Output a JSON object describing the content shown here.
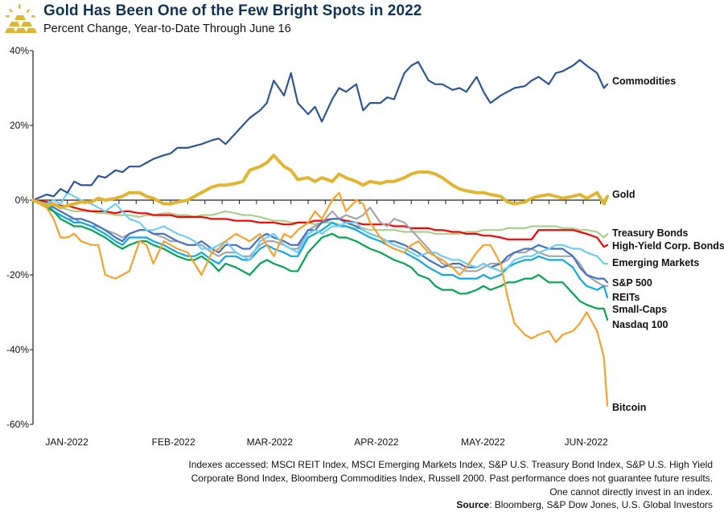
{
  "header": {
    "title": "Gold Has Been One of the Few Bright Spots in 2022",
    "subtitle": "Percent Change, Year-to-Date Through June 16",
    "logo_icon": "gold-bars-icon"
  },
  "footer": {
    "line1": "Indexes accessed: MSCI REIT Index, MSCI Emerging Markets Index, S&P U.S. Treasury Bond Index, S&P U.S. High Yield",
    "line2": "Corporate Bond Index, Bloomberg Commodities Index, Russell 2000. Past performance does not guarantee future results.",
    "line3": "One cannot directly invest in an index.",
    "source_label": "Source",
    "source_text": ": Bloomberg, S&P Dow Jones, U.S. Global Investors"
  },
  "chart_data": {
    "type": "line",
    "title": "Gold Has Been One of the Few Bright Spots in 2022",
    "subtitle": "Percent Change, Year-to-Date Through June 16",
    "xlabel": "",
    "ylabel": "",
    "ylim": [
      -60,
      40
    ],
    "yticks": [
      40,
      20,
      0,
      -20,
      -40,
      -60
    ],
    "ytick_labels": [
      "40%",
      "20%",
      "0%",
      "-20%",
      "-40%",
      "-60%"
    ],
    "x_range_days": [
      0,
      167
    ],
    "x_tick_labels": [
      "JAN-2022",
      "FEB-2022",
      "MAR-2022",
      "APR-2022",
      "MAY-2022",
      "JUN-2022"
    ],
    "x_tick_label_days": [
      4,
      35,
      63,
      94,
      125,
      155
    ],
    "grid": false,
    "legend": "direct-labels-right",
    "x": [
      0,
      4,
      6,
      8,
      10,
      12,
      14,
      17,
      19,
      21,
      24,
      26,
      28,
      31,
      33,
      35,
      38,
      40,
      42,
      45,
      47,
      49,
      52,
      54,
      56,
      59,
      61,
      63,
      66,
      68,
      70,
      73,
      75,
      77,
      80,
      82,
      84,
      87,
      89,
      91,
      94,
      96,
      98,
      101,
      103,
      105,
      108,
      110,
      112,
      115,
      117,
      119,
      122,
      124,
      126,
      129,
      131,
      133,
      136,
      138,
      140,
      143,
      145,
      147,
      150,
      152,
      154,
      157,
      159,
      161,
      164,
      166,
      167
    ],
    "series": [
      {
        "name": "Commodities",
        "color": "#2e5597",
        "width": 2.2,
        "values": [
          0,
          1.5,
          1,
          3,
          2,
          5,
          4,
          4,
          6.5,
          6,
          8,
          7.5,
          9,
          9,
          10,
          11,
          12,
          12.5,
          14,
          14,
          14.5,
          15,
          16,
          16.5,
          15,
          18,
          20,
          22,
          24,
          26,
          32,
          28,
          34,
          26,
          23,
          25,
          21,
          27,
          30,
          29,
          31,
          24,
          26,
          26,
          27.5,
          27,
          34,
          36,
          37,
          32,
          31,
          31,
          29.5,
          30,
          29,
          33,
          29,
          26,
          28,
          29,
          30,
          30.5,
          32,
          33,
          31,
          34,
          34.5,
          36,
          37.5,
          36,
          34,
          30,
          31
        ]
      },
      {
        "name": "Gold",
        "color": "#e1b52f",
        "width": 4,
        "values": [
          0,
          -1.5,
          -1,
          -2,
          -1.5,
          -1,
          -0.5,
          -0.5,
          0.5,
          0,
          0.5,
          1,
          2,
          2,
          1,
          0.5,
          -1,
          -1,
          -0.5,
          0,
          1,
          2,
          3.5,
          4,
          4,
          4.5,
          5,
          8,
          9,
          10,
          12,
          9,
          8,
          5.5,
          6,
          5,
          6,
          5,
          7,
          6,
          5,
          4,
          5,
          4.5,
          5,
          5,
          6,
          7,
          7.5,
          7.5,
          7,
          6,
          4,
          3,
          2.5,
          2,
          2,
          1.5,
          1,
          -0.5,
          -1,
          -0.5,
          0.5,
          1,
          1.5,
          1,
          0.5,
          1,
          1.5,
          0.5,
          2,
          -1,
          1
        ]
      },
      {
        "name": "Treasury Bonds",
        "color": "#a9d08e",
        "width": 2.2,
        "values": [
          0,
          -1,
          -1.5,
          -2,
          -2.5,
          -3,
          -3,
          -3,
          -3.5,
          -3.5,
          -4,
          -4,
          -4,
          -4.5,
          -4,
          -4,
          -3.5,
          -3.5,
          -4,
          -4,
          -4.5,
          -4,
          -4,
          -3.5,
          -3,
          -3.5,
          -4,
          -4,
          -4.5,
          -5,
          -5.5,
          -5.5,
          -6,
          -6,
          -6,
          -6.5,
          -6,
          -6,
          -6.5,
          -7,
          -7.5,
          -7.5,
          -8,
          -8,
          -8,
          -8,
          -8.5,
          -8.5,
          -8.5,
          -8.5,
          -9,
          -9,
          -9,
          -9,
          -8.5,
          -8.5,
          -8,
          -8,
          -8,
          -7.5,
          -7.5,
          -7.5,
          -7,
          -7,
          -7,
          -7,
          -7.5,
          -7.5,
          -8,
          -8,
          -8.5,
          -10,
          -9
        ]
      },
      {
        "name": "High-Yield Corp. Bonds",
        "color": "#ff0000",
        "width": 2.2,
        "values": [
          0,
          -0.5,
          -1,
          -1.5,
          -1.5,
          -2,
          -2.5,
          -3,
          -3,
          -3,
          -3.5,
          -3,
          -3,
          -3.5,
          -3.5,
          -4,
          -4,
          -4,
          -4.5,
          -4.5,
          -4.5,
          -4.5,
          -5,
          -5,
          -5,
          -5.5,
          -5.5,
          -5.5,
          -6,
          -6,
          -6,
          -6.5,
          -6.5,
          -6,
          -6,
          -5.5,
          -5.5,
          -5,
          -5,
          -5.5,
          -6,
          -6.5,
          -6.5,
          -6.5,
          -6.5,
          -7,
          -7,
          -7.5,
          -7.5,
          -7.5,
          -8,
          -8,
          -8.5,
          -8.5,
          -9,
          -9,
          -9.5,
          -9.5,
          -10,
          -10.5,
          -10.5,
          -10.5,
          -10.5,
          -8,
          -8,
          -8,
          -8,
          -8,
          -8.5,
          -9,
          -10,
          -12.5,
          -12
        ]
      },
      {
        "name": "Emerging Markets",
        "color": "#6dcff6",
        "width": 2.2,
        "values": [
          0,
          -1,
          0,
          -1,
          2,
          1,
          0,
          -1,
          -2,
          -3,
          -1,
          -3,
          -5,
          -6,
          -8,
          -8,
          -7,
          -8,
          -9,
          -10,
          -11,
          -13,
          -13,
          -12,
          -11,
          -14,
          -15,
          -16,
          -11,
          -10,
          -9,
          -12,
          -13,
          -14,
          -9,
          -8,
          -9,
          -7,
          -7,
          -6,
          -6,
          -8,
          -9,
          -10,
          -11,
          -12,
          -13,
          -14,
          -15,
          -14,
          -14,
          -15,
          -16,
          -16,
          -17,
          -18,
          -17,
          -18,
          -19,
          -18,
          -16,
          -15,
          -15,
          -14,
          -13,
          -12,
          -12,
          -13,
          -13,
          -14,
          -15,
          -17,
          -17
        ]
      },
      {
        "name": "S&P 500",
        "color": "#4472c4",
        "width": 2.2,
        "values": [
          0,
          -1,
          -2,
          -3,
          -4,
          -5,
          -5,
          -6,
          -7,
          -8,
          -10,
          -11,
          -9,
          -8,
          -8,
          -9,
          -9,
          -10,
          -11,
          -12,
          -12,
          -11,
          -13,
          -14,
          -12,
          -12,
          -13,
          -13,
          -10,
          -9,
          -10,
          -11,
          -12,
          -12,
          -8,
          -8,
          -6,
          -5,
          -5,
          -6,
          -7,
          -8,
          -9,
          -10,
          -11,
          -11,
          -12,
          -13,
          -14,
          -16,
          -17,
          -18,
          -17,
          -17,
          -18,
          -18,
          -17,
          -18,
          -17,
          -15,
          -14,
          -13,
          -13,
          -12,
          -13,
          -13,
          -13,
          -15,
          -18,
          -20,
          -21,
          -21,
          -22
        ]
      },
      {
        "name": "REITs",
        "color": "#a5a5a5",
        "width": 2.2,
        "values": [
          0,
          -2,
          -3,
          -4,
          -5,
          -5,
          -6,
          -7,
          -7,
          -8,
          -9,
          -10,
          -9,
          -8,
          -8,
          -9,
          -10,
          -11,
          -11,
          -12,
          -12,
          -12,
          -14,
          -15,
          -14,
          -14,
          -15,
          -15,
          -12,
          -11,
          -11,
          -12,
          -13,
          -13,
          -8,
          -7,
          -6,
          -3,
          -5,
          -4,
          -5,
          -4,
          -2,
          -6,
          -7,
          -5,
          -6,
          -8,
          -10,
          -13,
          -15,
          -17,
          -18,
          -18,
          -19,
          -19,
          -18,
          -17,
          -17,
          -16,
          -14,
          -14,
          -13,
          -14,
          -15,
          -15,
          -15,
          -15,
          -17,
          -20,
          -22,
          -23,
          -23
        ]
      },
      {
        "name": "Small-Caps",
        "color": "#0fa9e6",
        "width": 2.2,
        "values": [
          0,
          -1,
          -3,
          -4,
          -5,
          -6,
          -6,
          -7,
          -8,
          -9,
          -11,
          -12,
          -10,
          -10,
          -10,
          -11,
          -12,
          -13,
          -14,
          -15,
          -15,
          -14,
          -16,
          -17,
          -15,
          -15,
          -16,
          -16,
          -13,
          -12,
          -13,
          -14,
          -15,
          -15,
          -10,
          -9,
          -8,
          -6,
          -7,
          -7,
          -8,
          -9,
          -10,
          -11,
          -12,
          -13,
          -14,
          -15,
          -16,
          -18,
          -19,
          -20,
          -20,
          -21,
          -21,
          -21,
          -20,
          -21,
          -20,
          -18,
          -17,
          -16,
          -16,
          -15,
          -16,
          -16,
          -16,
          -18,
          -21,
          -23,
          -24,
          -23,
          -26
        ]
      },
      {
        "name": "Nasdaq 100",
        "color": "#00a651",
        "width": 2.2,
        "values": [
          0,
          -2,
          -3,
          -5,
          -6,
          -7,
          -7,
          -8,
          -9,
          -10,
          -12,
          -13,
          -12,
          -11,
          -11,
          -12,
          -13,
          -14,
          -15,
          -16,
          -16,
          -15,
          -17,
          -19,
          -17,
          -18,
          -19,
          -20,
          -17,
          -16,
          -17,
          -18,
          -19,
          -19,
          -14,
          -12,
          -10,
          -9,
          -10,
          -10,
          -11,
          -12,
          -13,
          -14,
          -15,
          -16,
          -17,
          -18,
          -20,
          -21,
          -23,
          -24,
          -24,
          -25,
          -25,
          -24,
          -23,
          -24,
          -23,
          -22,
          -22,
          -21,
          -21,
          -20,
          -22,
          -22,
          -22,
          -25,
          -27,
          -28,
          -29,
          -29,
          -32
        ]
      },
      {
        "name": "Bitcoin",
        "color": "#f9a12b",
        "width": 2.2,
        "values": [
          0,
          -2,
          -5,
          -10,
          -10,
          -9,
          -11,
          -12,
          -12,
          -20,
          -21,
          -20,
          -19,
          -11,
          -12,
          -17,
          -11,
          -12,
          -13,
          -14,
          -17,
          -20,
          -14,
          -13,
          -11,
          -9,
          -10,
          -11,
          -9,
          -12,
          -15,
          -9,
          -10,
          -8,
          -6,
          -3,
          -5,
          0,
          2,
          -3,
          0,
          -1,
          -6,
          -10,
          -12,
          -13,
          -14,
          -12,
          -11,
          -14,
          -15,
          -16,
          -18,
          -20,
          -18,
          -14,
          -12,
          -12,
          -17,
          -26,
          -33,
          -36,
          -37,
          -36,
          -35,
          -38,
          -36,
          -35,
          -33,
          -30,
          -35,
          -42,
          -55
        ]
      }
    ]
  },
  "labels": [
    {
      "name": "Commodities"
    },
    {
      "name": "Gold"
    },
    {
      "name": "Treasury Bonds"
    },
    {
      "name": "High-Yield Corp. Bonds"
    },
    {
      "name": "Emerging Markets"
    },
    {
      "name": "S&P 500"
    },
    {
      "name": "REITs"
    },
    {
      "name": "Small-Caps"
    },
    {
      "name": "Nasdaq 100"
    },
    {
      "name": "Bitcoin"
    }
  ]
}
